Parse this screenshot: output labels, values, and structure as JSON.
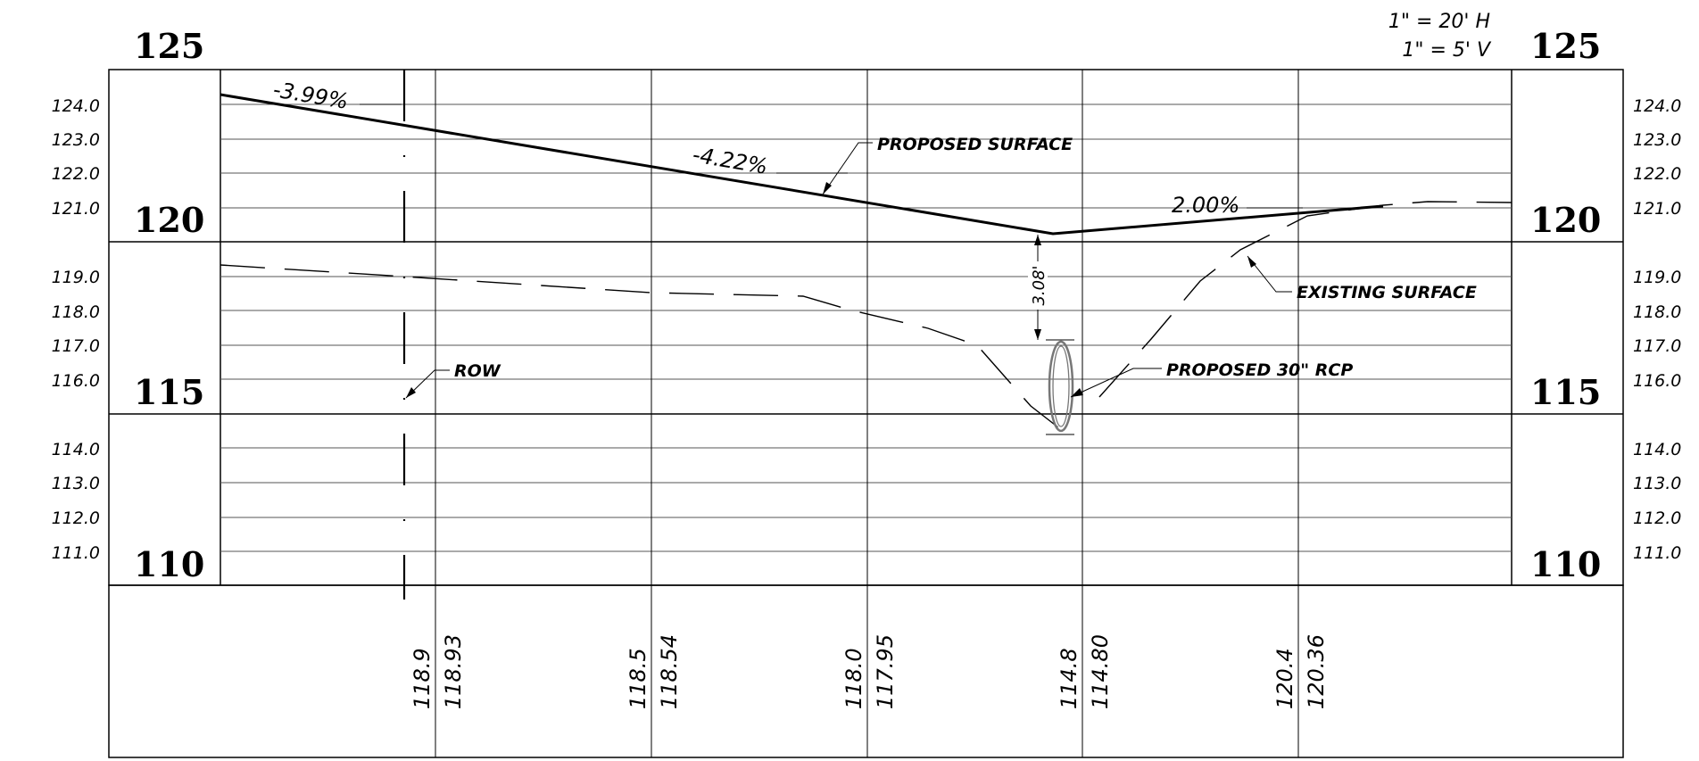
{
  "scale": {
    "horizontal": "1\" = 20' H",
    "vertical": "1\" = 5' V"
  },
  "major_elevations": [
    "125",
    "120",
    "115",
    "110"
  ],
  "left_elevations": [
    "124.0",
    "123.0",
    "122.0",
    "121.0",
    "119.0",
    "118.0",
    "117.0",
    "116.0",
    "114.0",
    "113.0",
    "112.0",
    "111.0"
  ],
  "right_elevations": [
    "124.0",
    "123.0",
    "122.0",
    "121.0",
    "119.0",
    "118.0",
    "117.0",
    "116.0",
    "114.0",
    "113.0",
    "112.0",
    "111.0"
  ],
  "grades": {
    "g1": "-3.99%",
    "g2": "-4.22%",
    "g3": "2.00%"
  },
  "annotations": {
    "proposed_surface": "PROPOSED SURFACE",
    "existing_surface": "EXISTING SURFACE",
    "row": "ROW",
    "pipe": "PROPOSED 30\" RCP",
    "cover": "3.08'"
  },
  "stations": [
    {
      "existing": "118.9",
      "proposed": "118.93"
    },
    {
      "existing": "118.5",
      "proposed": "118.54"
    },
    {
      "existing": "118.0",
      "proposed": "117.95"
    },
    {
      "existing": "114.8",
      "proposed": "114.80"
    },
    {
      "existing": "120.4",
      "proposed": "120.36"
    }
  ],
  "colors": {
    "line": "#000000",
    "grid": "#555555",
    "pipe": "#777777"
  }
}
